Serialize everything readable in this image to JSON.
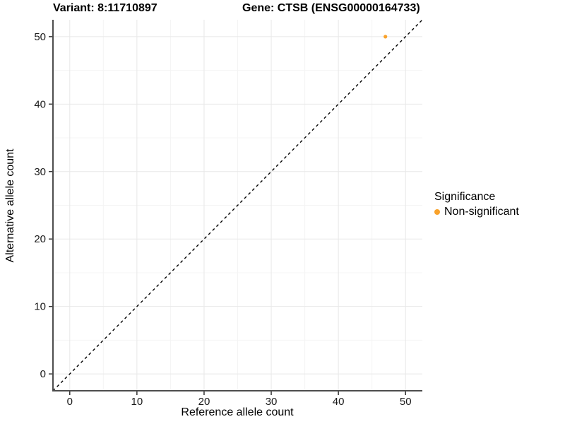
{
  "titles": {
    "left": "Variant: 8:11710897",
    "right": "Gene: CTSB (ENSG00000164733)"
  },
  "legend": {
    "title": "Significance",
    "items": [
      {
        "label": "Non-significant",
        "color": "#F9A22B",
        "marker": "circle"
      }
    ]
  },
  "chart_data": {
    "type": "scatter",
    "xlabel": "Reference allele count",
    "ylabel": "Alternative allele count",
    "xlim": [
      -2.5,
      52.5
    ],
    "ylim": [
      -2.5,
      52.5
    ],
    "x_ticks": [
      0,
      10,
      20,
      30,
      40,
      50
    ],
    "y_ticks": [
      0,
      10,
      20,
      30,
      40,
      50
    ],
    "x_minor_ticks": [
      5,
      15,
      25,
      35,
      45
    ],
    "y_minor_ticks": [
      5,
      15,
      25,
      35,
      45
    ],
    "grid": "on",
    "legend_position": "right",
    "reference_line": {
      "slope": 1,
      "intercept": 0,
      "style": "dashed",
      "color": "#000000"
    },
    "series": [
      {
        "name": "Non-significant",
        "color": "#F9A22B",
        "points": [
          [
            47,
            50
          ]
        ]
      }
    ],
    "colors": {
      "major_grid": "#E8E8E8",
      "minor_grid": "#F4F4F4",
      "axis_line": "#4D4D4D",
      "tick": "#333333",
      "text": "#1A1A1A"
    }
  }
}
